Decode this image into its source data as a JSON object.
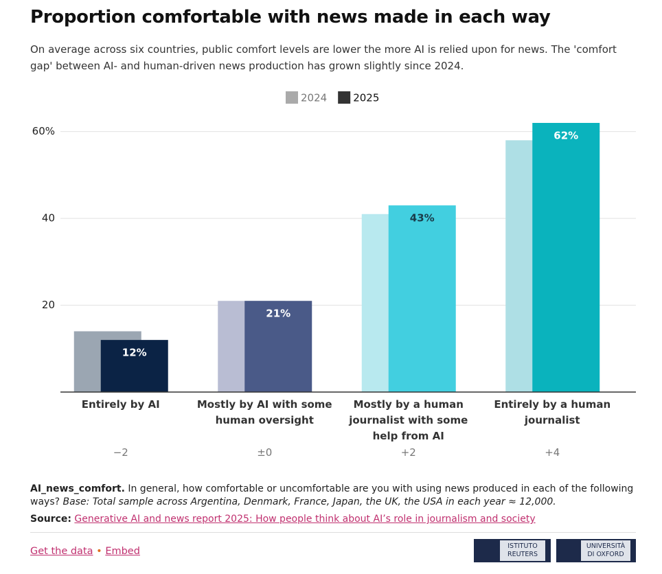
{
  "chart_data": {
    "type": "bar",
    "title": "Proportion comfortable with news made in each way",
    "subtitle": "On average across six countries, public comfort levels are lower the more AI is relied upon for news. The 'comfort gap' between AI- and human-driven news production has grown slightly since 2024.",
    "categories": [
      "Entirely by AI",
      "Mostly by AI with some human oversight",
      "Mostly by a human journalist with some help from AI",
      "Entirely by a human journalist"
    ],
    "gap_labels": [
      "−2",
      "±0",
      "+2",
      "+4"
    ],
    "series": [
      {
        "name": "2024",
        "color": "#aaaaaa",
        "bar_colors": [
          "#9ba6b2",
          "#b9bdd3",
          "#b8e9ef",
          "#aedfe5"
        ],
        "values": [
          14,
          21,
          41,
          58
        ]
      },
      {
        "name": "2025",
        "color": "#333333",
        "bar_colors": [
          "#0b2345",
          "#4a5a88",
          "#42cfe0",
          "#0ab3bd"
        ],
        "label_colors": [
          "#ffffff",
          "#ffffff",
          "#1a3c4a",
          "#ffffff"
        ],
        "values": [
          12,
          21,
          43,
          62
        ],
        "value_labels": [
          "12%",
          "21%",
          "43%",
          "62%"
        ]
      }
    ],
    "ylim": [
      0,
      62
    ],
    "yticks": [
      20,
      40,
      {
        "value": 60,
        "label": "60%"
      }
    ],
    "grid": true
  },
  "footer": {
    "question_id": "AI_news_comfort.",
    "question": "In general, how comfortable or uncomfortable are you with using news produced in each of the following ways?",
    "base": "Base: Total sample across Argentina, Denmark, France, Japan, the UK, the USA in each year ≈ 12,000.",
    "source_label": "Source:",
    "source": "Generative AI and news report 2025: How people think about AI’s role in journalism and society",
    "get_data": "Get the data",
    "embed": "Embed",
    "logo_reuters": "ISTITUTO REUTERS",
    "logo_oxford": "UNIVERSITÀ DI OXFORD"
  }
}
